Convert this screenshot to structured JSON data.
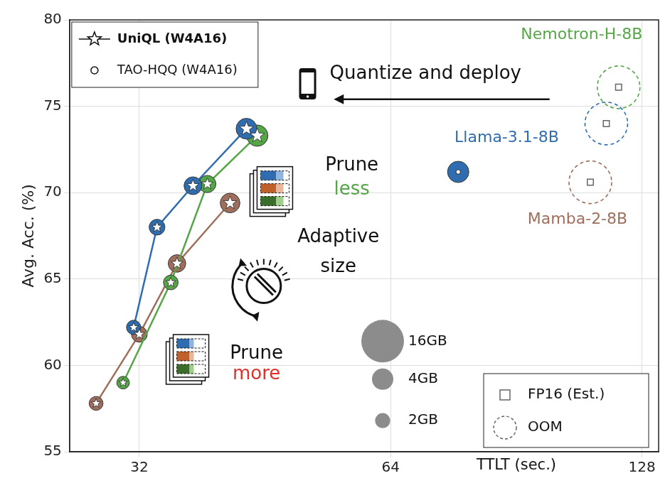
{
  "chart_data": {
    "type": "scatter",
    "x_label": "TTLT (sec.)",
    "y_label": "Avg. Acc. (%)",
    "log": "x",
    "xlim": [
      26.4,
      134
    ],
    "xticks": [
      32,
      64,
      128
    ],
    "ylim": [
      55,
      80
    ],
    "yticks": [
      55,
      60,
      65,
      70,
      75,
      80
    ],
    "grid": true,
    "legend": "top left",
    "methods": [
      {
        "name": "UniQL (W4A16)",
        "marker": "star",
        "line_style": "solid"
      },
      {
        "name": "TAO-HQQ (W4A16)",
        "marker": "circle"
      },
      {
        "name": "FP16 (Est.)",
        "marker": "square"
      }
    ],
    "oom_label": "OOM",
    "models": [
      {
        "name": "Llama-3.1-8B",
        "color": "#2f6db0"
      },
      {
        "name": "Nemotron-H-8B",
        "color": "#55a647"
      },
      {
        "name": "Mamba-2-8B",
        "color": "#a06e5c"
      }
    ],
    "series": [
      {
        "model": 0,
        "method": 0,
        "x": [
          31.5,
          33.6,
          37.1,
          43.0
        ],
        "values": [
          62.2,
          68.0,
          70.4,
          73.7
        ],
        "size_gb": [
          1.8,
          2.2,
          2.8,
          3.8
        ]
      },
      {
        "model": 1,
        "method": 0,
        "x": [
          30.6,
          34.9,
          38.6,
          44.3
        ],
        "values": [
          59.0,
          64.8,
          70.5,
          73.3
        ],
        "size_gb": [
          1.4,
          1.9,
          2.6,
          4.0
        ]
      },
      {
        "model": 2,
        "method": 0,
        "x": [
          28.4,
          32.0,
          35.5,
          41.1
        ],
        "values": [
          57.8,
          61.8,
          65.9,
          69.4
        ],
        "size_gb": [
          1.7,
          2.2,
          2.7,
          3.4
        ]
      },
      {
        "model": 0,
        "method": 1,
        "x": [
          77.1
        ],
        "values": [
          71.2
        ],
        "size_gb": [
          4.0
        ]
      },
      {
        "model": 1,
        "method": 2,
        "x": [
          120
        ],
        "values": [
          76.1
        ],
        "size_gb": [
          16
        ],
        "oom": true
      },
      {
        "model": 0,
        "method": 2,
        "x": [
          116
        ],
        "values": [
          74.0
        ],
        "size_gb": [
          16
        ],
        "oom": true
      },
      {
        "model": 2,
        "method": 2,
        "x": [
          111
        ],
        "values": [
          70.6
        ],
        "size_gb": [
          16
        ],
        "oom": true
      }
    ],
    "size_legend": [
      {
        "value": 16,
        "label": "16GB"
      },
      {
        "value": 4,
        "label": "4GB"
      },
      {
        "value": 2,
        "label": "2GB"
      }
    ],
    "annotations": {
      "deploy": "Quantize and deploy",
      "prune_less": [
        {
          "text": "Prune"
        },
        {
          "text": "less",
          "color": "#55a647"
        }
      ],
      "adaptive": "Adaptive size",
      "prune_more": [
        {
          "text": "Prune"
        },
        {
          "text": "more",
          "color": "#e0302a"
        }
      ]
    }
  }
}
